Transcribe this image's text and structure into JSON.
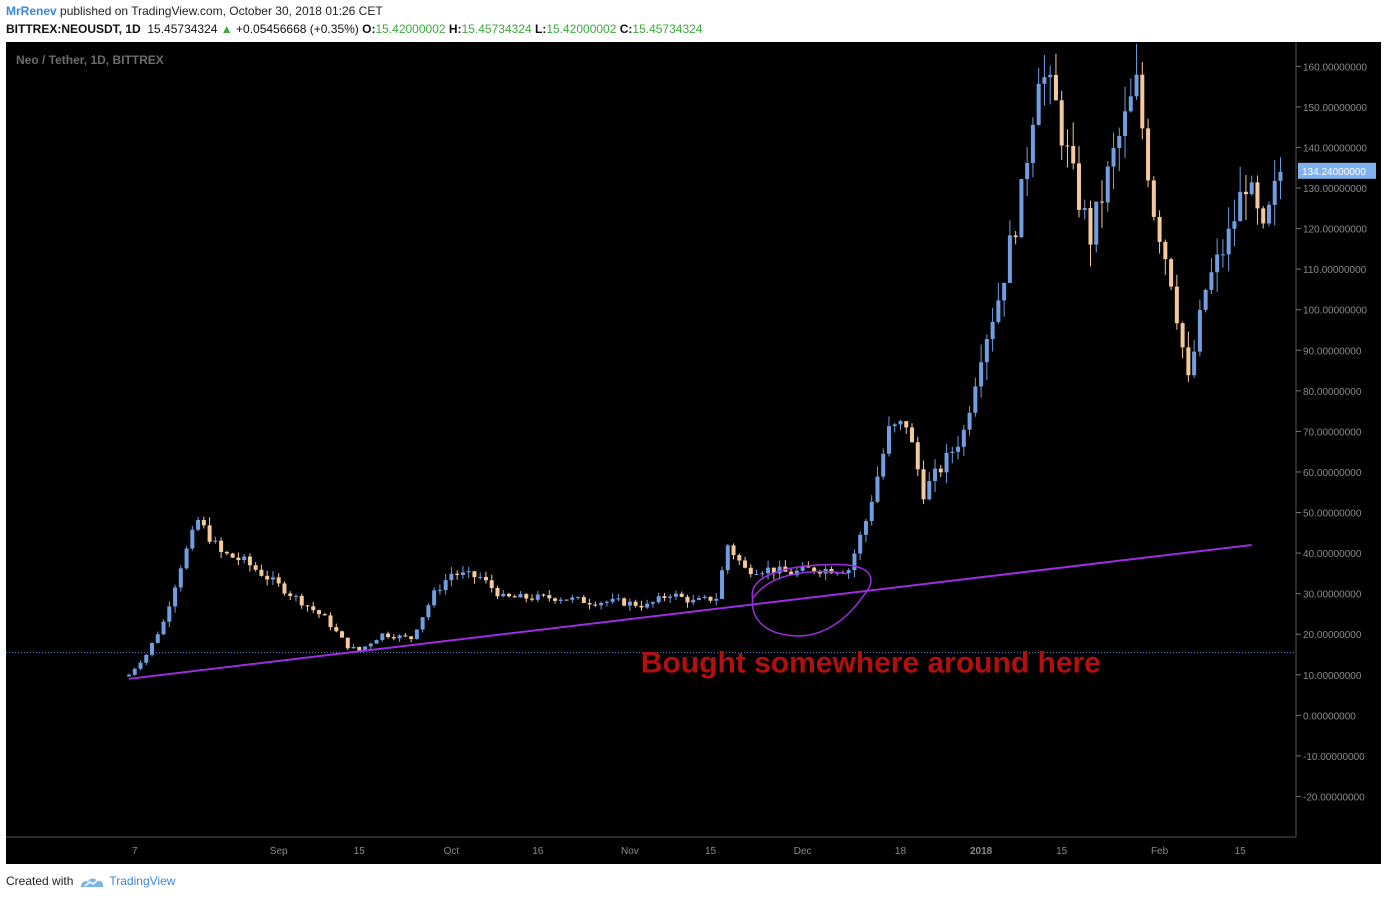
{
  "header": {
    "author": "MrRenev",
    "published_text": "published on TradingView.com, October 30, 2018 01:26 CET",
    "symbol": "BITTREX:NEOUSDT, 1D",
    "last": "15.45734324",
    "change": "+0.05456668 (+0.35%)",
    "open_label": "O:",
    "open": "15.42000002",
    "high_label": "H:",
    "high": "15.45734324",
    "low_label": "L:",
    "low": "15.42000002",
    "close_label": "C:",
    "close": "15.45734324"
  },
  "footer": {
    "created_with": "Created with",
    "brand": "TradingView"
  },
  "colors": {
    "bg": "#000000",
    "up": "#6f9fe0",
    "down": "#f5c99a",
    "trendline": "#9b2fe0",
    "annotation": "#b40f0f",
    "price_line": "#5b84d6"
  },
  "chart_data": {
    "type": "candlestick",
    "title": "Neo / Tether, 1D, BITTREX",
    "xlabel": "",
    "ylabel": "",
    "ylim": [
      -30,
      166
    ],
    "y_ticks": [
      -20,
      -10,
      0,
      10,
      20,
      30,
      40,
      50,
      60,
      70,
      80,
      90,
      100,
      110,
      120,
      130,
      140,
      150,
      160
    ],
    "y_tick_labels": [
      "-20.00000000",
      "-10.00000000",
      "0.00000000",
      "10.00000000",
      "20.00000000",
      "30.00000000",
      "40.00000000",
      "50.00000000",
      "60.00000000",
      "70.00000000",
      "80.00000000",
      "90.00000000",
      "100.00000000",
      "110.00000000",
      "120.00000000",
      "130.00000000",
      "140.00000000",
      "150.00000000",
      "160.00000000"
    ],
    "x_labels": [
      {
        "label": "7",
        "date": "2017-08-07"
      },
      {
        "label": "Sep",
        "date": "2017-09-01"
      },
      {
        "label": "15",
        "date": "2017-09-15"
      },
      {
        "label": "Oct",
        "date": "2017-10-01"
      },
      {
        "label": "16",
        "date": "2017-10-16"
      },
      {
        "label": "Nov",
        "date": "2017-11-01"
      },
      {
        "label": "15",
        "date": "2017-11-15"
      },
      {
        "label": "Dec",
        "date": "2017-12-01"
      },
      {
        "label": "18",
        "date": "2017-12-18"
      },
      {
        "label": "2018",
        "date": "2018-01-01"
      },
      {
        "label": "15",
        "date": "2018-01-15"
      },
      {
        "label": "Feb",
        "date": "2018-02-01"
      },
      {
        "label": "15",
        "date": "2018-02-15"
      }
    ],
    "current_price_label": "134.24000000",
    "current_price": 134.24,
    "price_line": 15.45,
    "trendline": {
      "start": {
        "date": "2017-08-06",
        "value": 9.0
      },
      "end": {
        "date": "2018-02-17",
        "value": 42.0
      }
    },
    "annotation": {
      "text": "Bought somewhere around here",
      "date": "2017-11-22",
      "value": 10.5
    },
    "ellipse": {
      "center_date": "2017-12-01",
      "center_value": 30,
      "note": "hand-drawn circle"
    },
    "closes": [
      {
        "date": "2017-08-06",
        "value": 10.0
      },
      {
        "date": "2017-08-09",
        "value": 15.0
      },
      {
        "date": "2017-08-12",
        "value": 23.0
      },
      {
        "date": "2017-08-15",
        "value": 37.0
      },
      {
        "date": "2017-08-18",
        "value": 48.0
      },
      {
        "date": "2017-08-22",
        "value": 40.0
      },
      {
        "date": "2017-08-26",
        "value": 38.0
      },
      {
        "date": "2017-08-30",
        "value": 34.0
      },
      {
        "date": "2017-09-04",
        "value": 29.0
      },
      {
        "date": "2017-09-09",
        "value": 24.0
      },
      {
        "date": "2017-09-13",
        "value": 17.0
      },
      {
        "date": "2017-09-15",
        "value": 16.0
      },
      {
        "date": "2017-09-19",
        "value": 20.0
      },
      {
        "date": "2017-09-24",
        "value": 19.0
      },
      {
        "date": "2017-09-28",
        "value": 30.0
      },
      {
        "date": "2017-10-01",
        "value": 35.0
      },
      {
        "date": "2017-10-06",
        "value": 34.0
      },
      {
        "date": "2017-10-10",
        "value": 29.0
      },
      {
        "date": "2017-10-15",
        "value": 29.0
      },
      {
        "date": "2017-10-20",
        "value": 29.0
      },
      {
        "date": "2017-10-25",
        "value": 28.0
      },
      {
        "date": "2017-10-30",
        "value": 28.0
      },
      {
        "date": "2017-11-04",
        "value": 27.0
      },
      {
        "date": "2017-11-08",
        "value": 30.0
      },
      {
        "date": "2017-11-12",
        "value": 28.0
      },
      {
        "date": "2017-11-16",
        "value": 29.0
      },
      {
        "date": "2017-11-18",
        "value": 42.0
      },
      {
        "date": "2017-11-21",
        "value": 36.0
      },
      {
        "date": "2017-11-25",
        "value": 36.0
      },
      {
        "date": "2017-11-29",
        "value": 35.0
      },
      {
        "date": "2017-12-02",
        "value": 36.0
      },
      {
        "date": "2017-12-05",
        "value": 36.0
      },
      {
        "date": "2017-12-09",
        "value": 36.0
      },
      {
        "date": "2017-12-12",
        "value": 48.0
      },
      {
        "date": "2017-12-16",
        "value": 70.0
      },
      {
        "date": "2017-12-19",
        "value": 72.0
      },
      {
        "date": "2017-12-22",
        "value": 55.0
      },
      {
        "date": "2017-12-26",
        "value": 63.0
      },
      {
        "date": "2017-12-29",
        "value": 70.0
      },
      {
        "date": "2018-01-01",
        "value": 90.0
      },
      {
        "date": "2018-01-04",
        "value": 103.0
      },
      {
        "date": "2018-01-08",
        "value": 128.0
      },
      {
        "date": "2018-01-11",
        "value": 160.0
      },
      {
        "date": "2018-01-14",
        "value": 150.0
      },
      {
        "date": "2018-01-17",
        "value": 132.0
      },
      {
        "date": "2018-01-20",
        "value": 118.0
      },
      {
        "date": "2018-01-24",
        "value": 138.0
      },
      {
        "date": "2018-01-28",
        "value": 155.0
      },
      {
        "date": "2018-01-31",
        "value": 125.0
      },
      {
        "date": "2018-02-03",
        "value": 108.0
      },
      {
        "date": "2018-02-06",
        "value": 82.0
      },
      {
        "date": "2018-02-09",
        "value": 105.0
      },
      {
        "date": "2018-02-13",
        "value": 118.0
      },
      {
        "date": "2018-02-16",
        "value": 132.0
      },
      {
        "date": "2018-02-19",
        "value": 118.0
      },
      {
        "date": "2018-02-22",
        "value": 134.24
      }
    ]
  }
}
